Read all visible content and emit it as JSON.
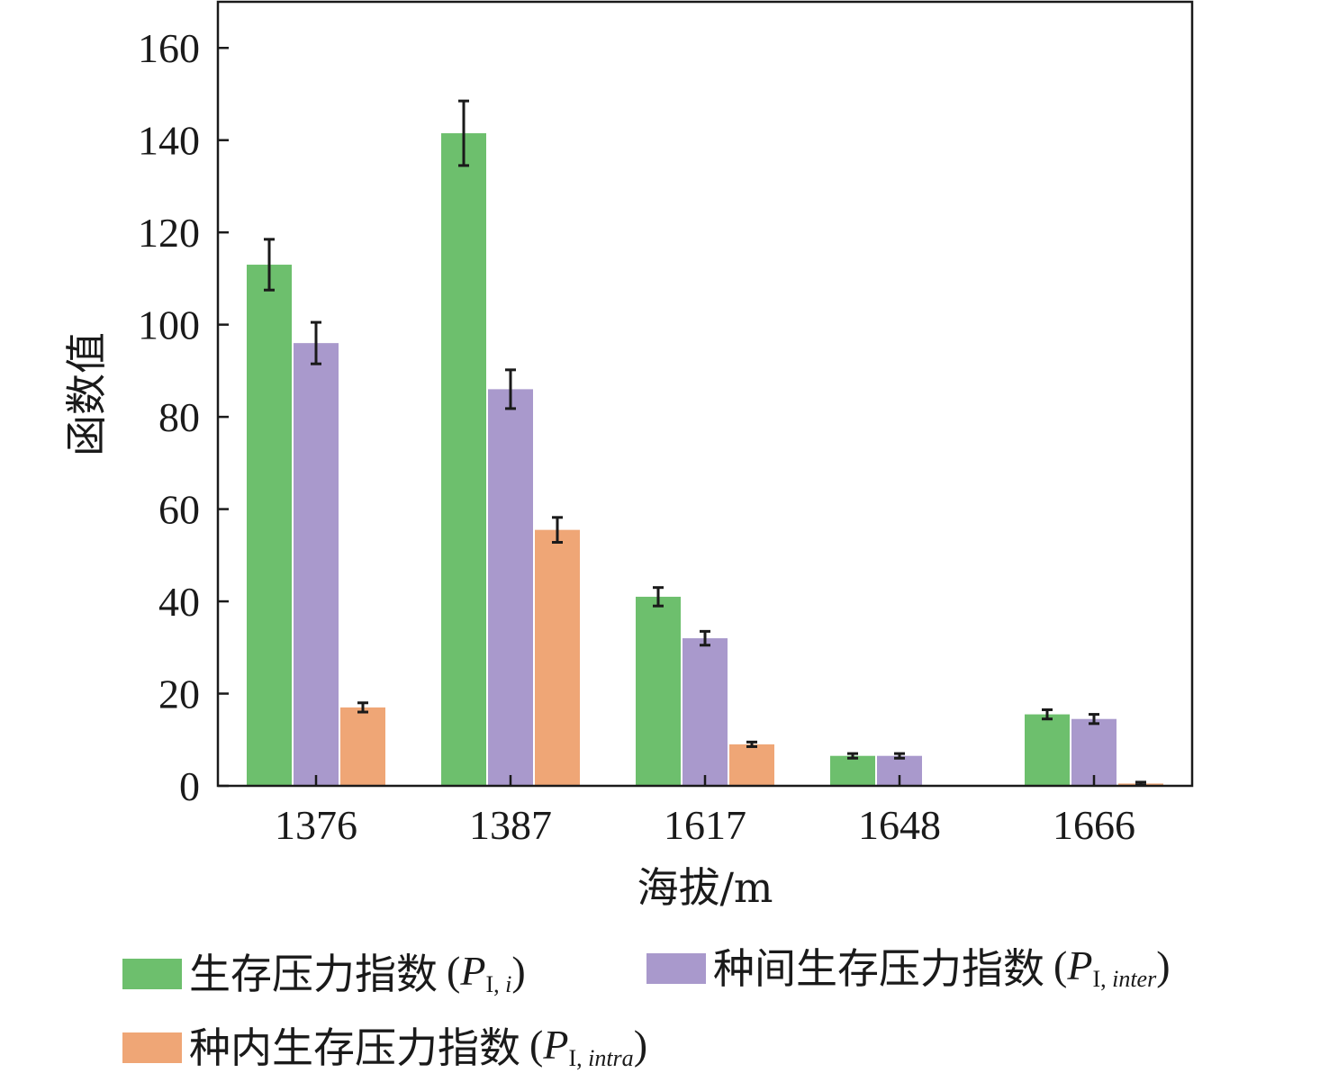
{
  "chart_data": {
    "type": "bar",
    "xlabel": "海拔/m",
    "ylabel": "函数值",
    "ylim": [
      0,
      170
    ],
    "yticks": [
      0,
      20,
      40,
      60,
      80,
      100,
      120,
      140,
      160
    ],
    "categories": [
      "1376",
      "1387",
      "1617",
      "1648",
      "1666"
    ],
    "series": [
      {
        "name": "生存压力指数",
        "symbol_base": "P",
        "symbol_sub_roman": "I, ",
        "symbol_sub_italic": "i",
        "color": "#6dbf6d",
        "values": [
          113,
          141.5,
          41,
          6.5,
          15.5
        ],
        "errors": [
          5.5,
          7,
          2,
          0.5,
          1
        ]
      },
      {
        "name": "种间生存压力指数",
        "symbol_base": "P",
        "symbol_sub_roman": "I, ",
        "symbol_sub_italic": "inter",
        "color": "#a999cc",
        "values": [
          96,
          86,
          32,
          6.5,
          14.5
        ],
        "errors": [
          4.5,
          4.2,
          1.5,
          0.5,
          1
        ]
      },
      {
        "name": "种内生存压力指数",
        "symbol_base": "P",
        "symbol_sub_roman": "I, ",
        "symbol_sub_italic": "intra",
        "color": "#efa676",
        "values": [
          17,
          55.5,
          9,
          0,
          0.5
        ],
        "errors": [
          1,
          2.7,
          0.5,
          0,
          0.3
        ]
      }
    ],
    "legend_position": "bottom"
  }
}
